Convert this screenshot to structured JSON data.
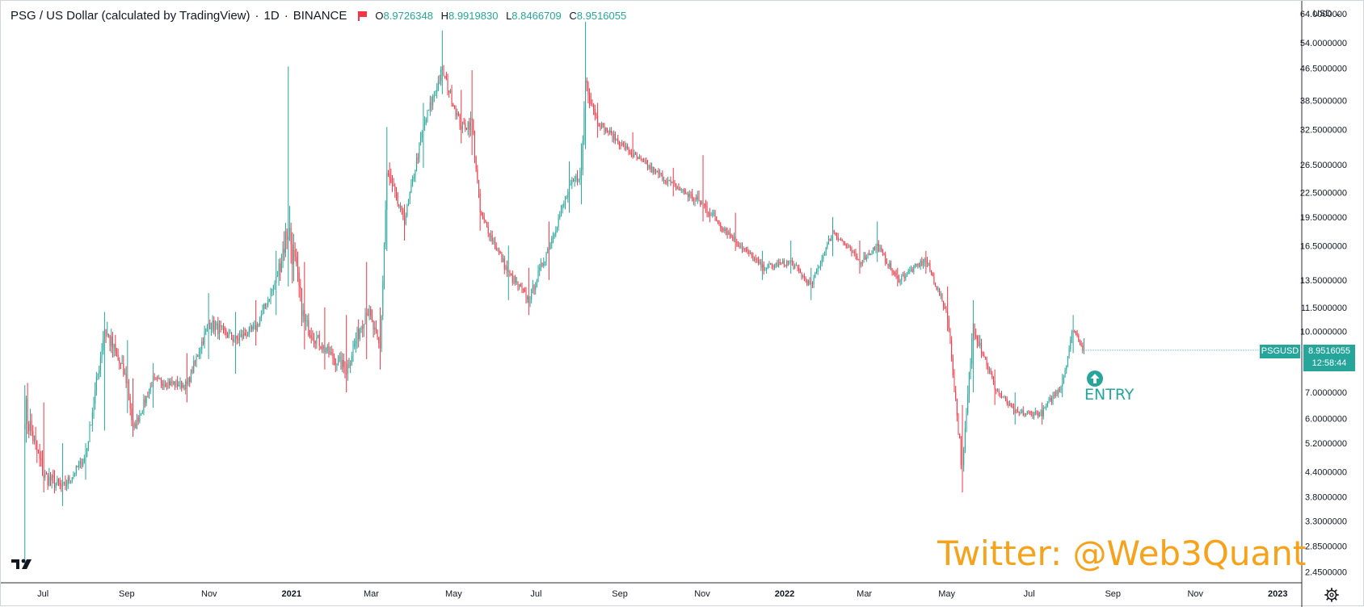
{
  "header": {
    "pair": "PSG / US Dollar (calculated by TradingView)",
    "interval": "1D",
    "exchange": "BINANCE",
    "o_key": "O",
    "o_val": "8.9726348",
    "h_key": "H",
    "h_val": "8.9919830",
    "l_key": "L",
    "l_val": "8.8466709",
    "c_key": "C",
    "c_val": "8.9516055"
  },
  "currency_label": "USD",
  "symbol_badge": "PSGUSD",
  "price_badge": {
    "price": "8.9516055",
    "countdown": "12:58:44"
  },
  "annotation": {
    "label": "ENTRY",
    "icon": "up-arrow-circle-icon"
  },
  "watermark": "Twitter: @Web3Quant",
  "colors": {
    "up": "#26a69a",
    "down": "#f23645",
    "watermark": "#f7a21b",
    "grid_border": "#d1d4dc"
  },
  "chart_data": {
    "type": "candlestick",
    "scale": "log",
    "ylim": [
      2.3,
      69
    ],
    "y_ticks": [
      "64.0000000",
      "54.0000000",
      "46.5000000",
      "38.5000000",
      "32.5000000",
      "26.5000000",
      "22.5000000",
      "19.5000000",
      "16.5000000",
      "13.5000000",
      "11.5000000",
      "10.0000000",
      "7.0000000",
      "6.0000000",
      "5.2000000",
      "4.4000000",
      "3.8000000",
      "3.3000000",
      "2.8500000",
      "2.4500000"
    ],
    "x_ticks": [
      "Jul",
      "Sep",
      "Nov",
      "2021",
      "Mar",
      "May",
      "Jul",
      "Sep",
      "Nov",
      "2022",
      "Mar",
      "May",
      "Jul",
      "Sep",
      "Nov",
      "2023"
    ],
    "x_range": [
      "2020-06-01",
      "2023-01-20"
    ],
    "first_date": "2020-06-17",
    "last_price": 8.9516055,
    "anchors": [
      [
        "2020-06-17",
        2.5,
        7.3,
        6.4
      ],
      [
        "2020-07-01",
        3.9,
        6.6,
        4.3
      ],
      [
        "2020-07-15",
        3.6,
        5.2,
        4.0
      ],
      [
        "2020-08-01",
        4.2,
        5.2,
        4.8
      ],
      [
        "2020-08-15",
        5.6,
        11.2,
        10.2
      ],
      [
        "2020-09-01",
        6.2,
        9.5,
        7.4
      ],
      [
        "2020-09-05",
        5.4,
        7.6,
        5.6
      ],
      [
        "2020-09-20",
        6.4,
        8.3,
        7.5
      ],
      [
        "2020-10-15",
        6.6,
        8.8,
        7.3
      ],
      [
        "2020-10-31",
        8.5,
        12.5,
        10.5
      ],
      [
        "2020-11-20",
        7.8,
        11.2,
        9.5
      ],
      [
        "2020-12-05",
        9.2,
        12.0,
        10.2
      ],
      [
        "2020-12-20",
        11.0,
        16.0,
        13.5
      ],
      [
        "2020-12-29",
        13.0,
        47.0,
        18.5
      ],
      [
        "2021-01-10",
        9.0,
        15.0,
        10.5
      ],
      [
        "2021-01-25",
        8.0,
        11.5,
        9.0
      ],
      [
        "2021-02-10",
        7.0,
        11.0,
        8.0
      ],
      [
        "2021-02-25",
        8.5,
        15.0,
        11.5
      ],
      [
        "2021-03-07",
        8.0,
        11.5,
        9.0
      ],
      [
        "2021-03-12",
        16.0,
        33.0,
        25.0
      ],
      [
        "2021-03-25",
        17.0,
        21.0,
        19.0
      ],
      [
        "2021-04-08",
        26.0,
        38.0,
        33.0
      ],
      [
        "2021-04-22",
        40.0,
        58.0,
        46.0
      ],
      [
        "2021-05-06",
        30.0,
        41.0,
        33.0
      ],
      [
        "2021-05-14",
        28.0,
        46.0,
        34.0
      ],
      [
        "2021-05-20",
        18.0,
        23.0,
        20.0
      ],
      [
        "2021-06-10",
        12.0,
        16.5,
        14.0
      ],
      [
        "2021-06-25",
        11.0,
        14.5,
        12.0
      ],
      [
        "2021-07-10",
        13.5,
        19.0,
        16.5
      ],
      [
        "2021-07-25",
        20.0,
        27.0,
        23.0
      ],
      [
        "2021-08-03",
        21.0,
        30.0,
        25.5
      ],
      [
        "2021-08-06",
        29.0,
        61.0,
        44.0
      ],
      [
        "2021-08-15",
        31.0,
        38.0,
        34.0
      ],
      [
        "2021-09-10",
        29.0,
        32.0,
        28.0
      ],
      [
        "2021-10-10",
        22.0,
        26.0,
        23.5
      ],
      [
        "2021-11-01",
        19.0,
        28.0,
        21.0
      ],
      [
        "2021-11-25",
        16.0,
        20.0,
        17.0
      ],
      [
        "2021-12-15",
        13.5,
        16.0,
        14.5
      ],
      [
        "2022-01-05",
        14.0,
        17.0,
        15.0
      ],
      [
        "2022-01-20",
        12.0,
        14.5,
        13.0
      ],
      [
        "2022-02-05",
        15.5,
        19.5,
        18.0
      ],
      [
        "2022-02-25",
        14.0,
        17.0,
        15.0
      ],
      [
        "2022-03-10",
        15.0,
        19.0,
        16.5
      ],
      [
        "2022-03-25",
        13.0,
        14.5,
        13.5
      ],
      [
        "2022-04-15",
        14.0,
        16.0,
        15.2
      ],
      [
        "2022-05-01",
        10.0,
        13.0,
        11.0
      ],
      [
        "2022-05-12",
        3.9,
        6.5,
        4.4
      ],
      [
        "2022-05-20",
        7.0,
        12.0,
        10.5
      ],
      [
        "2022-06-05",
        6.5,
        8.0,
        7.2
      ],
      [
        "2022-06-20",
        5.8,
        7.0,
        6.2
      ],
      [
        "2022-07-10",
        5.8,
        6.6,
        6.2
      ],
      [
        "2022-07-25",
        6.8,
        7.8,
        7.4
      ],
      [
        "2022-08-02",
        8.8,
        11.0,
        10.2
      ],
      [
        "2022-08-10",
        8.8,
        9.6,
        8.95
      ]
    ],
    "entry_date": "2022-08-01",
    "entry_price": 7.2
  }
}
